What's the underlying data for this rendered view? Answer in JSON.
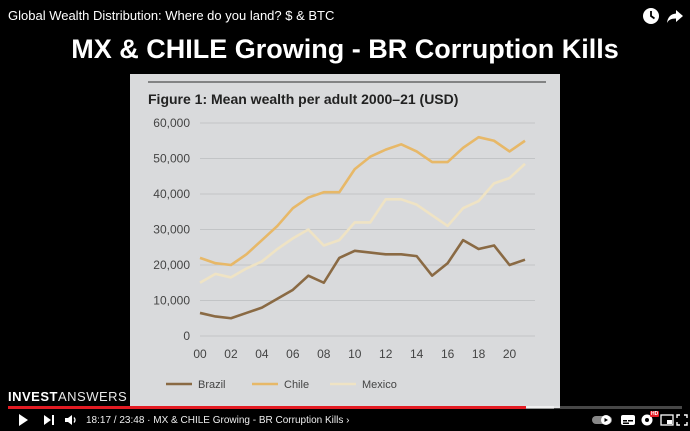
{
  "video": {
    "title": "Global Wealth Distribution: Where do you land? $ & BTC",
    "headline": "MX & CHILE Growing - BR Corruption Kills"
  },
  "slide": {
    "figure_title": "Figure 1: Mean wealth per adult 2000–21 (USD)"
  },
  "brand": {
    "part1": "INVEST",
    "part2": "ANSWERS"
  },
  "player": {
    "current_time": "18:17",
    "duration": "23:48",
    "time_display": "18:17 / 23:48 · MX & CHILE Growing - BR Corruption Kills ›",
    "progress_fraction": 0.768,
    "buffered_fraction": 0.81,
    "hd_label": "HD"
  },
  "icons": {
    "top": [
      "clock-icon",
      "share-icon"
    ],
    "controls": [
      "play-icon",
      "next-icon",
      "volume-icon",
      "autoplay-toggle-icon",
      "subtitles-icon",
      "settings-icon",
      "miniplayer-icon",
      "theater-icon",
      "fullscreen-icon"
    ]
  },
  "colors": {
    "brazil": "#8a6a44",
    "chile": "#e7b868",
    "mexico": "#efe3c4",
    "progress": "#e31b23",
    "slide_bg": "#d9dadc"
  },
  "chart_data": {
    "type": "line",
    "title": "Figure 1: Mean wealth per adult 2000–21 (USD)",
    "xlabel": "",
    "ylabel": "",
    "x": [
      2000,
      2001,
      2002,
      2003,
      2004,
      2005,
      2006,
      2007,
      2008,
      2009,
      2010,
      2011,
      2012,
      2013,
      2014,
      2015,
      2016,
      2017,
      2018,
      2019,
      2020,
      2021
    ],
    "x_tick_values": [
      2000,
      2002,
      2004,
      2006,
      2008,
      2010,
      2012,
      2014,
      2016,
      2018,
      2020
    ],
    "x_tick_labels": [
      "00",
      "02",
      "04",
      "06",
      "08",
      "10",
      "12",
      "14",
      "16",
      "18",
      "20"
    ],
    "y_tick_values": [
      0,
      10000,
      20000,
      30000,
      40000,
      50000,
      60000
    ],
    "y_tick_labels": [
      "0",
      "10,000",
      "20,000",
      "30,000",
      "40,000",
      "50,000",
      "60,000"
    ],
    "ylim": [
      0,
      60000
    ],
    "xlim": [
      2000,
      2021
    ],
    "grid": true,
    "legend_position": "bottom",
    "series": [
      {
        "name": "Brazil",
        "color": "#8a6a44",
        "values": [
          6500,
          5500,
          5000,
          6500,
          8000,
          10500,
          13000,
          17000,
          15000,
          22000,
          24000,
          23500,
          23000,
          23000,
          22500,
          17000,
          20500,
          27000,
          24500,
          25500,
          20000,
          21500
        ]
      },
      {
        "name": "Chile",
        "color": "#e7b868",
        "values": [
          22000,
          20500,
          20000,
          23000,
          27000,
          31000,
          36000,
          39000,
          40500,
          40500,
          47000,
          50500,
          52500,
          54000,
          52000,
          49000,
          49000,
          53000,
          56000,
          55000,
          52000,
          55000
        ]
      },
      {
        "name": "Mexico",
        "color": "#efe3c4",
        "values": [
          15000,
          17500,
          16500,
          19000,
          21000,
          24500,
          27500,
          30000,
          25500,
          27000,
          32000,
          32000,
          38500,
          38500,
          37000,
          34000,
          31000,
          36000,
          38000,
          43000,
          44500,
          48500
        ]
      }
    ]
  }
}
